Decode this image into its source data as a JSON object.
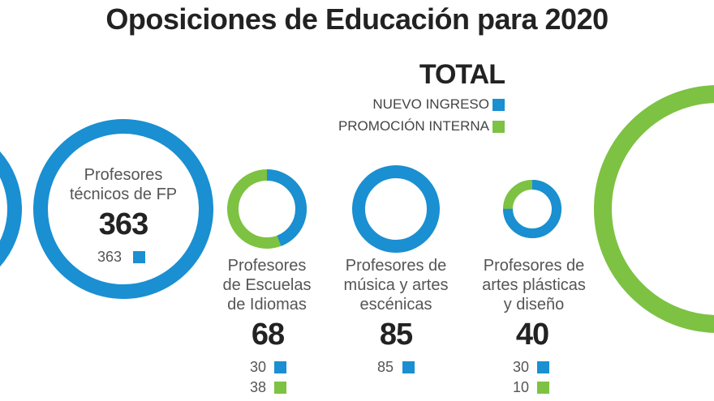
{
  "title": "Oposiciones de Educación para 2020",
  "legend": {
    "heading": "TOTAL",
    "nuevo_label": "NUEVO INGRESO",
    "promocion_label": "PROMOCIÓN INTERNA",
    "nuevo_color": "#1a8fd1",
    "promocion_color": "#7dc242"
  },
  "chart_data": {
    "type": "donut",
    "series_names": [
      "NUEVO INGRESO",
      "PROMOCIÓN INTERNA"
    ],
    "items": [
      {
        "label": "Profesores técnicos de FP",
        "total": 363,
        "nuevo": 363,
        "promocion": null
      },
      {
        "label": "Profesores de Escuelas de Idiomas",
        "total": 68,
        "nuevo": 30,
        "promocion": 38
      },
      {
        "label": "Profesores de música y artes escénicas",
        "total": 85,
        "nuevo": 85,
        "promocion": null
      },
      {
        "label": "Profesores de artes plásticas y diseño",
        "total": 40,
        "nuevo": 30,
        "promocion": 10
      }
    ]
  },
  "labels": {
    "fp_line1": "Profesores",
    "fp_line2": "técnicos de FP",
    "idiomas_line1": "Profesores",
    "idiomas_line2": "de Escuelas",
    "idiomas_line3": "de Idiomas",
    "musica_line1": "Profesores de",
    "musica_line2": "música y artes",
    "musica_line3": "escénicas",
    "plasticas_line1": "Profesores de",
    "plasticas_line2": "artes plásticas",
    "plasticas_line3": "y diseño"
  },
  "values": {
    "fp_total": "363",
    "fp_nuevo": "363",
    "idiomas_total": "68",
    "idiomas_nuevo": "30",
    "idiomas_promocion": "38",
    "musica_total": "85",
    "musica_nuevo": "85",
    "plasticas_total": "40",
    "plasticas_nuevo": "30",
    "plasticas_promocion": "10"
  }
}
